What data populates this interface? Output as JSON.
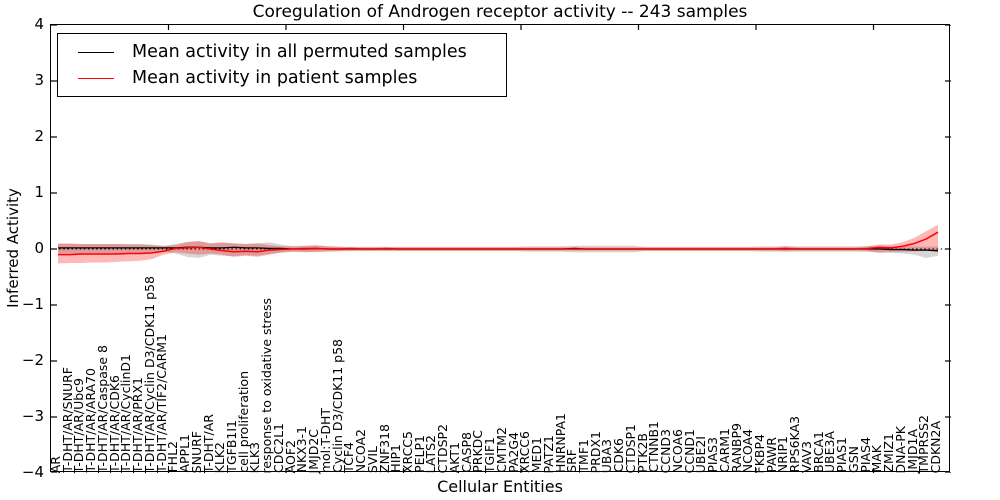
{
  "title": "Coregulation of Androgen receptor activity -- 243 samples",
  "axes": {
    "xlabel": "Cellular Entities",
    "ylabel": "Inferred Activity",
    "ytick_labels": [
      "4",
      "3",
      "2",
      "1",
      "0",
      "−1",
      "−2",
      "−3",
      "−4"
    ]
  },
  "legend": {
    "entries": [
      {
        "label": "Mean activity in all permuted samples",
        "color": "#000000"
      },
      {
        "label": "Mean activity in patient samples",
        "color": "#ff0000"
      }
    ]
  },
  "chart_data": {
    "type": "line",
    "title": "Coregulation of Androgen receptor activity -- 243 samples",
    "xlabel": "Cellular Entities",
    "ylabel": "Inferred Activity",
    "ylim": [
      -4,
      4
    ],
    "ytick_values": [
      4,
      3,
      2,
      1,
      0,
      -1,
      -2,
      -3,
      -4
    ],
    "xtick_units": [
      10,
      20,
      30,
      40,
      50,
      60,
      70
    ],
    "grid": false,
    "legend_position": "upper left",
    "zero_reference_line": "dotted black",
    "categories": [
      "AR",
      "T-DHT/AR/SNURF",
      "T-DHT/AR/Ubc9",
      "T-DHT/AR/ARA70",
      "T-DHT/AR/Caspase 8",
      "T-DHT/AR/CDK6",
      "T-DHT/AR/CyclinD1",
      "T-DHT/AR/PRX1",
      "T-DHT/AR/Cyclin D3/CDK11 p58",
      "T-DHT/AR/TIF2/CARM1",
      "FHL2",
      "APPL1",
      "SNURF",
      "T-DHT/AR",
      "KLK2",
      "TGFB1I1",
      "cell proliferation",
      "KLK3",
      "response to oxidative stress",
      "CDC2L1",
      "AOF2",
      "NKX3-1",
      "JMJD2C",
      "mol:T-DHT",
      "Cyclin D3/CDK11 p58",
      "TCF4",
      "NCOA2",
      "SVIL",
      "ZNF318",
      "HIP1",
      "XRCC5",
      "PELP1",
      "LATS2",
      "CTDSP2",
      "AKT1",
      "CASP8",
      "PRKDC",
      "TGIF1",
      "CMTM2",
      "PA2G4",
      "XRCC6",
      "MED1",
      "PATZ1",
      "HNRNPA1",
      "SRF",
      "TMF1",
      "PRDX1",
      "UBA3",
      "CDK6",
      "CTDSP1",
      "PTK2B",
      "CTNNB1",
      "CCND3",
      "NCOA6",
      "CCND1",
      "UBE2I",
      "PIAS3",
      "CARM1",
      "RANBP9",
      "NCOA4",
      "FKBP4",
      "PAWR",
      "NRIP1",
      "RPS6KA3",
      "VAV3",
      "BRCA1",
      "UBE3A",
      "PIAS1",
      "GSN",
      "PIAS4",
      "MAK",
      "ZMIZ1",
      "DNA-PK",
      "JMJD1A",
      "TMPRSS2",
      "CDKN2A"
    ],
    "series": [
      {
        "name": "Mean activity in all permuted samples",
        "color": "#000000",
        "line_width": 1.3,
        "band_opacity": 0.16,
        "values": [
          0.02,
          0.02,
          0.02,
          0.02,
          0.02,
          0.02,
          0.02,
          0.02,
          0.02,
          0.02,
          0.02,
          0.03,
          0.03,
          0.02,
          0.02,
          0.03,
          0.02,
          0.02,
          0.01,
          0.01,
          0.0,
          0.0,
          0.01,
          0.0,
          0.0,
          0.0,
          0.0,
          0.0,
          0.0,
          0.0,
          0.0,
          0.0,
          0.0,
          0.0,
          0.0,
          0.0,
          0.0,
          0.0,
          0.0,
          0.0,
          0.0,
          0.0,
          0.0,
          0.0,
          0.01,
          0.0,
          0.0,
          0.0,
          0.0,
          0.0,
          0.0,
          0.0,
          0.0,
          0.0,
          0.0,
          0.0,
          0.0,
          0.0,
          0.0,
          0.0,
          0.0,
          0.0,
          0.0,
          0.0,
          0.0,
          0.0,
          0.0,
          0.0,
          0.0,
          0.0,
          0.0,
          -0.01,
          -0.01,
          -0.02,
          -0.02,
          -0.03
        ],
        "band_lo": [
          -0.08,
          -0.08,
          -0.08,
          -0.08,
          -0.08,
          -0.08,
          -0.08,
          -0.08,
          -0.07,
          -0.05,
          -0.08,
          -0.14,
          -0.16,
          -0.1,
          -0.12,
          -0.13,
          -0.11,
          -0.12,
          -0.09,
          -0.07,
          -0.05,
          -0.05,
          -0.06,
          -0.05,
          -0.04,
          -0.04,
          -0.04,
          -0.04,
          -0.04,
          -0.04,
          -0.04,
          -0.04,
          -0.04,
          -0.04,
          -0.04,
          -0.04,
          -0.04,
          -0.04,
          -0.04,
          -0.04,
          -0.05,
          -0.05,
          -0.05,
          -0.05,
          -0.06,
          -0.06,
          -0.06,
          -0.06,
          -0.06,
          -0.06,
          -0.04,
          -0.04,
          -0.04,
          -0.04,
          -0.04,
          -0.04,
          -0.04,
          -0.04,
          -0.04,
          -0.04,
          -0.05,
          -0.05,
          -0.05,
          -0.05,
          -0.05,
          -0.05,
          -0.05,
          -0.05,
          -0.05,
          -0.05,
          -0.06,
          -0.07,
          -0.08,
          -0.1,
          -0.16,
          -0.12
        ],
        "band_hi": [
          0.09,
          0.09,
          0.09,
          0.09,
          0.09,
          0.09,
          0.09,
          0.09,
          0.08,
          0.06,
          0.09,
          0.13,
          0.14,
          0.1,
          0.11,
          0.1,
          0.09,
          0.1,
          0.12,
          0.08,
          0.05,
          0.05,
          0.06,
          0.05,
          0.04,
          0.04,
          0.04,
          0.04,
          0.04,
          0.04,
          0.04,
          0.04,
          0.04,
          0.04,
          0.04,
          0.04,
          0.04,
          0.04,
          0.04,
          0.04,
          0.05,
          0.05,
          0.05,
          0.05,
          0.06,
          0.06,
          0.06,
          0.06,
          0.06,
          0.06,
          0.04,
          0.04,
          0.04,
          0.04,
          0.04,
          0.04,
          0.04,
          0.04,
          0.04,
          0.04,
          0.05,
          0.05,
          0.05,
          0.05,
          0.05,
          0.05,
          0.05,
          0.05,
          0.05,
          0.05,
          0.06,
          0.05,
          0.05,
          0.05,
          0.04,
          0.05
        ]
      },
      {
        "name": "Mean activity in patient samples",
        "color": "#ff0000",
        "line_width": 1.5,
        "band_opacity": 0.28,
        "values": [
          -0.1,
          -0.1,
          -0.09,
          -0.09,
          -0.09,
          -0.09,
          -0.08,
          -0.08,
          -0.07,
          -0.04,
          0.01,
          0.02,
          0.03,
          0.0,
          -0.03,
          -0.05,
          -0.04,
          -0.05,
          -0.02,
          -0.01,
          0.0,
          0.01,
          0.01,
          0.0,
          0.0,
          0.01,
          0.0,
          0.0,
          0.01,
          0.0,
          0.0,
          0.0,
          0.0,
          0.0,
          0.0,
          0.0,
          0.0,
          0.0,
          0.0,
          0.0,
          0.0,
          0.0,
          0.0,
          0.0,
          0.0,
          0.0,
          0.0,
          0.0,
          0.0,
          0.0,
          0.0,
          0.0,
          0.0,
          0.0,
          0.0,
          0.0,
          0.0,
          0.0,
          0.0,
          0.0,
          0.0,
          0.0,
          0.01,
          0.0,
          0.0,
          0.0,
          0.0,
          0.0,
          0.0,
          0.01,
          0.03,
          0.02,
          0.05,
          0.1,
          0.18,
          0.3
        ],
        "band_lo": [
          -0.26,
          -0.25,
          -0.25,
          -0.24,
          -0.24,
          -0.23,
          -0.22,
          -0.21,
          -0.18,
          -0.1,
          -0.06,
          -0.08,
          -0.1,
          -0.08,
          -0.1,
          -0.14,
          -0.12,
          -0.14,
          -0.1,
          -0.06,
          -0.05,
          -0.06,
          -0.05,
          -0.04,
          -0.04,
          -0.03,
          -0.03,
          -0.03,
          -0.03,
          -0.03,
          -0.03,
          -0.03,
          -0.03,
          -0.03,
          -0.03,
          -0.03,
          -0.03,
          -0.03,
          -0.03,
          -0.03,
          -0.03,
          -0.03,
          -0.03,
          -0.03,
          -0.03,
          -0.03,
          -0.03,
          -0.03,
          -0.03,
          -0.03,
          -0.03,
          -0.03,
          -0.03,
          -0.03,
          -0.03,
          -0.03,
          -0.03,
          -0.03,
          -0.03,
          -0.03,
          -0.03,
          -0.03,
          -0.04,
          -0.03,
          -0.03,
          -0.03,
          -0.03,
          -0.03,
          -0.03,
          -0.04,
          -0.07,
          -0.05,
          -0.05,
          -0.04,
          -0.03,
          -0.06
        ],
        "band_hi": [
          0.1,
          0.1,
          0.09,
          0.09,
          0.09,
          0.09,
          0.08,
          0.08,
          0.07,
          0.05,
          0.07,
          0.12,
          0.14,
          0.1,
          0.12,
          0.1,
          0.09,
          0.1,
          0.07,
          0.05,
          0.05,
          0.06,
          0.07,
          0.05,
          0.04,
          0.03,
          0.03,
          0.03,
          0.03,
          0.03,
          0.03,
          0.03,
          0.03,
          0.03,
          0.03,
          0.03,
          0.03,
          0.03,
          0.03,
          0.03,
          0.03,
          0.03,
          0.03,
          0.03,
          0.03,
          0.03,
          0.03,
          0.03,
          0.03,
          0.03,
          0.03,
          0.03,
          0.03,
          0.03,
          0.03,
          0.03,
          0.03,
          0.03,
          0.03,
          0.03,
          0.03,
          0.03,
          0.05,
          0.03,
          0.03,
          0.03,
          0.03,
          0.03,
          0.03,
          0.05,
          0.08,
          0.08,
          0.12,
          0.2,
          0.32,
          0.43
        ]
      }
    ]
  }
}
